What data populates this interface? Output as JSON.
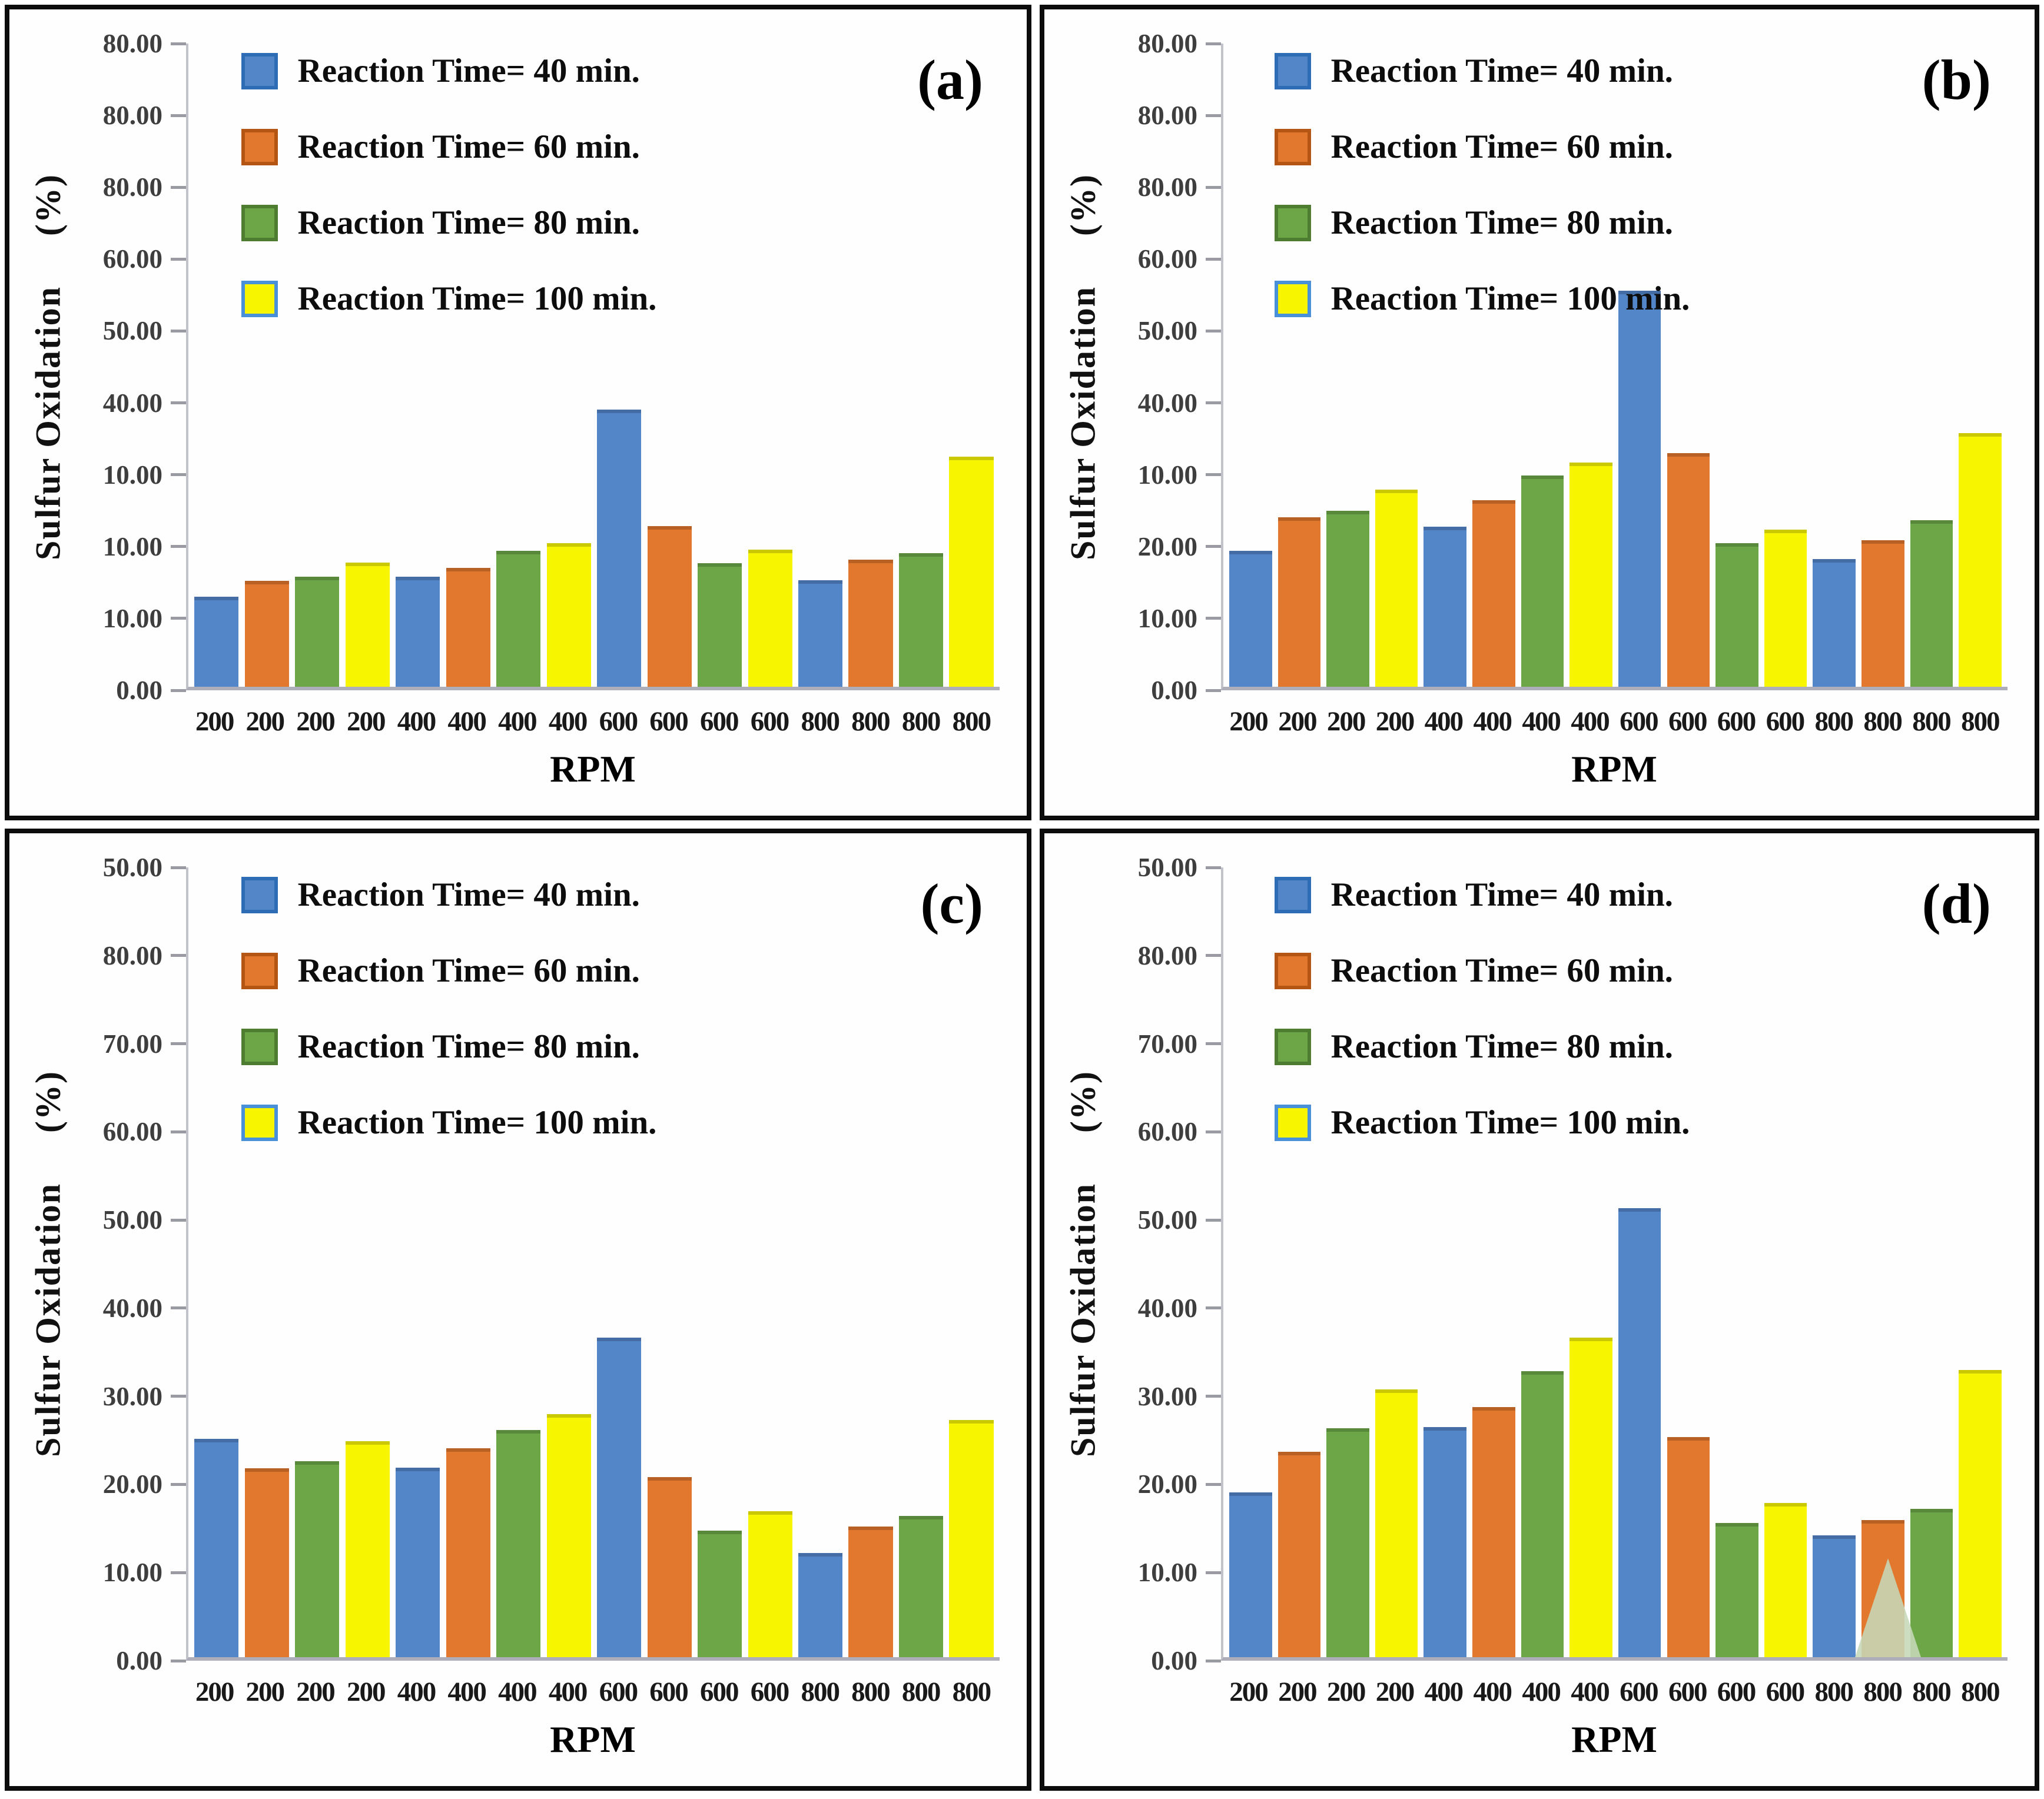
{
  "figure": {
    "y_axis_title": "Sulfur Oxidation     (%)",
    "x_axis_title": "RPM",
    "x_tick_labels": [
      "200",
      "200",
      "200",
      "200",
      "400",
      "400",
      "400",
      "400",
      "600",
      "600",
      "600",
      "600",
      "800",
      "800",
      "800",
      "800"
    ],
    "ymax": 90,
    "legend": [
      {
        "label": "Reaction Time= 40 min.",
        "color": "#5286c9",
        "border": "#2e6db5"
      },
      {
        "label": "Reaction Time= 60 min.",
        "color": "#e2772e",
        "border": "#b45514"
      },
      {
        "label": "Reaction Time= 80 min.",
        "color": "#6ca646",
        "border": "#4e7d31"
      },
      {
        "label": "Reaction Time= 100 min.",
        "color": "#f7f500",
        "border": "#4a90d9"
      }
    ],
    "panels": [
      {
        "id": "a",
        "label": "(a)",
        "watermark": false,
        "y_tick_labels": [
          "80.00",
          "80.00",
          "80.00",
          "60.00",
          "50.00",
          "40.00",
          "10.00",
          "10.00",
          "10.00",
          "0.00"
        ]
      },
      {
        "id": "b",
        "label": "(b)",
        "watermark": false,
        "y_tick_labels": [
          "80.00",
          "80.00",
          "80.00",
          "60.00",
          "50.00",
          "40.00",
          "10.00",
          "20.00",
          "10.00",
          "0.00"
        ]
      },
      {
        "id": "c",
        "label": "(c)",
        "watermark": false,
        "y_tick_labels": [
          "50.00",
          "80.00",
          "70.00",
          "60.00",
          "50.00",
          "40.00",
          "30.00",
          "20.00",
          "10.00",
          "0.00"
        ]
      },
      {
        "id": "d",
        "label": "(d)",
        "watermark": true,
        "y_tick_labels": [
          "50.00",
          "80.00",
          "70.00",
          "60.00",
          "50.00",
          "40.00",
          "30.00",
          "20.00",
          "10.00",
          "0.00"
        ]
      }
    ]
  },
  "chart_data": [
    {
      "type": "bar",
      "panel": "a",
      "title": "(a)",
      "xlabel": "RPM",
      "ylabel": "Sulfur Oxidation (%)",
      "ylim": [
        0,
        90
      ],
      "grid": false,
      "legend_position": "upper-left",
      "categories": [
        "200",
        "400",
        "600",
        "800"
      ],
      "series": [
        {
          "name": "Reaction Time= 40 min.",
          "values": [
            12.6,
            15.4,
            38.8,
            14.9
          ]
        },
        {
          "name": "Reaction Time= 60 min.",
          "values": [
            14.8,
            16.6,
            22.5,
            17.8
          ]
        },
        {
          "name": "Reaction Time= 80 min.",
          "values": [
            15.4,
            19.0,
            17.3,
            18.7
          ]
        },
        {
          "name": "Reaction Time= 100 min.",
          "values": [
            17.4,
            20.1,
            19.2,
            32.2
          ]
        }
      ]
    },
    {
      "type": "bar",
      "panel": "b",
      "title": "(b)",
      "xlabel": "RPM",
      "ylabel": "Sulfur Oxidation (%)",
      "ylim": [
        0,
        90
      ],
      "grid": false,
      "legend_position": "upper-left",
      "categories": [
        "200",
        "400",
        "600",
        "800"
      ],
      "series": [
        {
          "name": "Reaction Time= 40 min.",
          "values": [
            19.0,
            22.4,
            55.4,
            17.9
          ]
        },
        {
          "name": "Reaction Time= 60 min.",
          "values": [
            23.7,
            26.1,
            32.7,
            20.5
          ]
        },
        {
          "name": "Reaction Time= 80 min.",
          "values": [
            24.6,
            29.6,
            20.1,
            23.3
          ]
        },
        {
          "name": "Reaction Time= 100 min.",
          "values": [
            27.6,
            31.4,
            22.0,
            35.5
          ]
        }
      ]
    },
    {
      "type": "bar",
      "panel": "c",
      "title": "(c)",
      "xlabel": "RPM",
      "ylabel": "Sulfur Oxidation (%)",
      "ylim": [
        0,
        90
      ],
      "grid": false,
      "legend_position": "upper-left",
      "categories": [
        "200",
        "400",
        "600",
        "800"
      ],
      "series": [
        {
          "name": "Reaction Time= 40 min.",
          "values": [
            24.9,
            21.6,
            36.4,
            11.9
          ]
        },
        {
          "name": "Reaction Time= 60 min.",
          "values": [
            21.5,
            23.8,
            20.5,
            14.9
          ]
        },
        {
          "name": "Reaction Time= 80 min.",
          "values": [
            22.3,
            25.9,
            14.4,
            16.1
          ]
        },
        {
          "name": "Reaction Time= 100 min.",
          "values": [
            24.6,
            27.7,
            16.6,
            27.0
          ]
        }
      ]
    },
    {
      "type": "bar",
      "panel": "d",
      "title": "(d)",
      "xlabel": "RPM",
      "ylabel": "Sulfur Oxidation (%)",
      "ylim": [
        0,
        90
      ],
      "grid": false,
      "legend_position": "upper-left",
      "categories": [
        "200",
        "400",
        "600",
        "800"
      ],
      "series": [
        {
          "name": "Reaction Time= 40 min.",
          "values": [
            18.8,
            26.2,
            51.2,
            13.9
          ]
        },
        {
          "name": "Reaction Time= 60 min.",
          "values": [
            23.4,
            28.5,
            25.1,
            15.6
          ]
        },
        {
          "name": "Reaction Time= 80 min.",
          "values": [
            26.1,
            32.6,
            15.3,
            16.9
          ]
        },
        {
          "name": "Reaction Time= 100 min.",
          "values": [
            30.5,
            36.4,
            17.6,
            32.7
          ]
        }
      ]
    }
  ]
}
